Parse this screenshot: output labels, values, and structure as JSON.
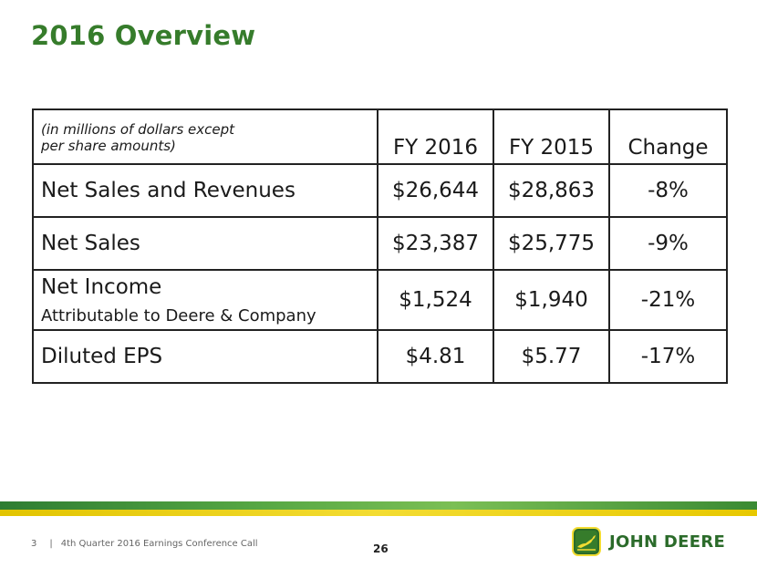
{
  "slide": {
    "title": "2016 Overview",
    "page_number": "26"
  },
  "table": {
    "header_note_line1": "(in millions of dollars except",
    "header_note_line2": "per share amounts)",
    "columns": [
      "FY 2016",
      "FY 2015",
      "Change"
    ],
    "rows": [
      {
        "label": "Net Sales and Revenues",
        "sublabel": "",
        "fy2016": "$26,644",
        "fy2015": "$28,863",
        "change": "-8%"
      },
      {
        "label": "Net Sales",
        "sublabel": "",
        "fy2016": "$23,387",
        "fy2015": "$25,775",
        "change": "-9%"
      },
      {
        "label": "Net Income",
        "sublabel": "Attributable to Deere & Company",
        "fy2016": "$1,524",
        "fy2015": "$1,940",
        "change": "-21%"
      },
      {
        "label": "Diluted EPS",
        "sublabel": "",
        "fy2016": "$4.81",
        "fy2015": "$5.77",
        "change": "-17%"
      }
    ]
  },
  "footer": {
    "slide_index": "3",
    "separator": "|",
    "event": "4th Quarter 2016 Earnings Conference Call",
    "brand": "JOHN DEERE"
  },
  "colors": {
    "title_green": "#367c2b",
    "stripe_green": "#57a844",
    "stripe_yellow": "#f3dc32",
    "brand_green": "#2b6b2a"
  }
}
